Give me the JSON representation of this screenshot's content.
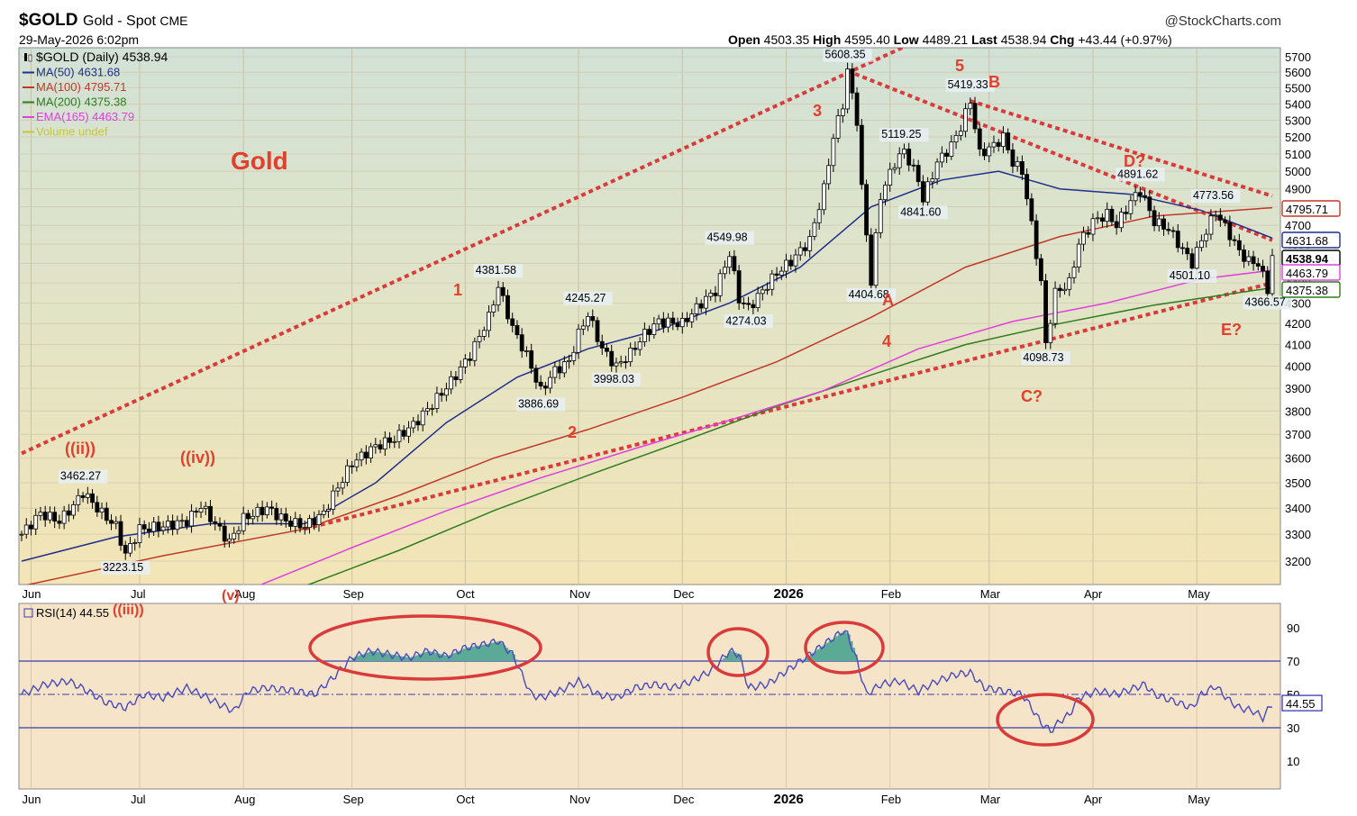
{
  "header": {
    "symbol": "$GOLD",
    "name": "Gold - Spot",
    "exchange": "CME",
    "date": "29-May-2026 6:02pm",
    "source": "@StockCharts.com",
    "ohlc": {
      "open_label": "Open",
      "open": "4503.35",
      "high_label": "High",
      "high": "4595.40",
      "low_label": "Low",
      "low": "4489.21",
      "last_label": "Last",
      "last": "4538.94",
      "chg_label": "Chg",
      "chg": "+43.44 (+0.97%)"
    }
  },
  "legend": [
    {
      "text": "$GOLD (Daily) 4538.94",
      "color": "#000000",
      "marker": "candle-icon"
    },
    {
      "text": "MA(50) 4631.68",
      "color": "#1f2f8c"
    },
    {
      "text": "MA(100) 4795.71",
      "color": "#c0392b"
    },
    {
      "text": "MA(200) 4375.38",
      "color": "#2e7d1e"
    },
    {
      "text": "EMA(165) 4463.79",
      "color": "#e040e0"
    },
    {
      "text": "Volume undef",
      "color": "#c8c830"
    }
  ],
  "chart_title": "Gold",
  "rsi_legend": "RSI(14) 44.55",
  "colors": {
    "price_bg_top": "#d2e2d6",
    "price_bg_bottom": "#f3e5b6",
    "rsi_bg": "#f5e4c8",
    "trend": "#d93a3a",
    "wave": "#e0402c",
    "ma50": "#1f2f8c",
    "ma100": "#c0392b",
    "ma200": "#2e7d1e",
    "ema165": "#e040e0",
    "rsi_line": "#4a4ac0",
    "rsi_fill": "#5aaa96"
  },
  "chart_data": [
    {
      "type": "candlestick",
      "title": "Gold",
      "x_labels": [
        "Jun",
        "Jul",
        "Aug",
        "Sep",
        "Oct",
        "Nov",
        "Dec",
        "2026",
        "Feb",
        "Mar",
        "Apr",
        "May"
      ],
      "y_ticks": [
        3200,
        3300,
        3400,
        3500,
        3600,
        3700,
        3800,
        3900,
        4000,
        4100,
        4200,
        4300,
        4400,
        4500,
        4600,
        4700,
        4800,
        4900,
        5000,
        5100,
        5200,
        5300,
        5400,
        5500,
        5600,
        5700
      ],
      "ylim": [
        3110,
        5760
      ],
      "scale": "log",
      "price_points": [
        {
          "t": 0,
          "v": 3300
        },
        {
          "t": 4,
          "v": 3380
        },
        {
          "t": 8,
          "v": 3350
        },
        {
          "t": 11,
          "v": 3410
        },
        {
          "t": 13,
          "v": 3462.27
        },
        {
          "t": 17,
          "v": 3380
        },
        {
          "t": 20,
          "v": 3330
        },
        {
          "t": 22,
          "v": 3223.15
        },
        {
          "t": 25,
          "v": 3320
        },
        {
          "t": 30,
          "v": 3330
        },
        {
          "t": 35,
          "v": 3350
        },
        {
          "t": 38,
          "v": 3410
        },
        {
          "t": 41,
          "v": 3340
        },
        {
          "t": 44,
          "v": 3270
        },
        {
          "t": 47,
          "v": 3360
        },
        {
          "t": 52,
          "v": 3400
        },
        {
          "t": 56,
          "v": 3350
        },
        {
          "t": 60,
          "v": 3330
        },
        {
          "t": 64,
          "v": 3380
        },
        {
          "t": 66,
          "v": 3450
        },
        {
          "t": 70,
          "v": 3580
        },
        {
          "t": 75,
          "v": 3650
        },
        {
          "t": 79,
          "v": 3680
        },
        {
          "t": 83,
          "v": 3740
        },
        {
          "t": 87,
          "v": 3830
        },
        {
          "t": 91,
          "v": 3930
        },
        {
          "t": 95,
          "v": 4050
        },
        {
          "t": 99,
          "v": 4230
        },
        {
          "t": 101,
          "v": 4381.58
        },
        {
          "t": 104,
          "v": 4180
        },
        {
          "t": 107,
          "v": 4050
        },
        {
          "t": 110,
          "v": 3886.69
        },
        {
          "t": 113,
          "v": 3980
        },
        {
          "t": 116,
          "v": 4020
        },
        {
          "t": 118,
          "v": 4150
        },
        {
          "t": 120,
          "v": 4245.27
        },
        {
          "t": 123,
          "v": 4080
        },
        {
          "t": 126,
          "v": 3998.03
        },
        {
          "t": 129,
          "v": 4060
        },
        {
          "t": 132,
          "v": 4150
        },
        {
          "t": 135,
          "v": 4210
        },
        {
          "t": 140,
          "v": 4200
        },
        {
          "t": 144,
          "v": 4300
        },
        {
          "t": 147,
          "v": 4360
        },
        {
          "t": 150,
          "v": 4549.98
        },
        {
          "t": 152,
          "v": 4320
        },
        {
          "t": 154,
          "v": 4274.03
        },
        {
          "t": 157,
          "v": 4360
        },
        {
          "t": 160,
          "v": 4450
        },
        {
          "t": 163,
          "v": 4510
        },
        {
          "t": 167,
          "v": 4620
        },
        {
          "t": 170,
          "v": 4900
        },
        {
          "t": 172,
          "v": 5200
        },
        {
          "t": 174,
          "v": 5400
        },
        {
          "t": 175,
          "v": 5608.35
        },
        {
          "t": 177,
          "v": 5300
        },
        {
          "t": 178,
          "v": 4900
        },
        {
          "t": 180,
          "v": 4404.68
        },
        {
          "t": 182,
          "v": 4860
        },
        {
          "t": 185,
          "v": 5050
        },
        {
          "t": 187,
          "v": 5119.25
        },
        {
          "t": 190,
          "v": 4950
        },
        {
          "t": 191,
          "v": 4841.6
        },
        {
          "t": 194,
          "v": 5050
        },
        {
          "t": 197,
          "v": 5150
        },
        {
          "t": 199,
          "v": 5260
        },
        {
          "t": 201,
          "v": 5419.33
        },
        {
          "t": 203,
          "v": 5100
        },
        {
          "t": 206,
          "v": 5150
        },
        {
          "t": 208,
          "v": 5200
        },
        {
          "t": 210,
          "v": 5050
        },
        {
          "t": 212,
          "v": 5000
        },
        {
          "t": 214,
          "v": 4700
        },
        {
          "t": 216,
          "v": 4400
        },
        {
          "t": 217,
          "v": 4098.73
        },
        {
          "t": 219,
          "v": 4350
        },
        {
          "t": 222,
          "v": 4400
        },
        {
          "t": 224,
          "v": 4600
        },
        {
          "t": 227,
          "v": 4720
        },
        {
          "t": 230,
          "v": 4760
        },
        {
          "t": 232,
          "v": 4700
        },
        {
          "t": 235,
          "v": 4830
        },
        {
          "t": 237,
          "v": 4891.62
        },
        {
          "t": 240,
          "v": 4720
        },
        {
          "t": 243,
          "v": 4680
        },
        {
          "t": 246,
          "v": 4570
        },
        {
          "t": 248,
          "v": 4501.1
        },
        {
          "t": 250,
          "v": 4620
        },
        {
          "t": 253,
          "v": 4773.56
        },
        {
          "t": 256,
          "v": 4650
        },
        {
          "t": 258,
          "v": 4560
        },
        {
          "t": 260,
          "v": 4510
        },
        {
          "t": 262,
          "v": 4500
        },
        {
          "t": 264,
          "v": 4366.57
        },
        {
          "t": 265,
          "v": 4538.94
        }
      ],
      "series": [
        {
          "name": "MA(50)",
          "last": 4631.68,
          "points": [
            [
              0,
              3200
            ],
            [
              20,
              3290
            ],
            [
              40,
              3340
            ],
            [
              60,
              3340
            ],
            [
              75,
              3500
            ],
            [
              90,
              3750
            ],
            [
              105,
              3950
            ],
            [
              120,
              4080
            ],
            [
              135,
              4170
            ],
            [
              150,
              4300
            ],
            [
              165,
              4480
            ],
            [
              180,
              4800
            ],
            [
              195,
              4950
            ],
            [
              207,
              5000
            ],
            [
              220,
              4900
            ],
            [
              235,
              4870
            ],
            [
              250,
              4780
            ],
            [
              265,
              4631.68
            ]
          ]
        },
        {
          "name": "MA(100)",
          "last": 4795.71,
          "points": [
            [
              0,
              3110
            ],
            [
              30,
              3220
            ],
            [
              60,
              3320
            ],
            [
              80,
              3450
            ],
            [
              100,
              3600
            ],
            [
              120,
              3720
            ],
            [
              140,
              3860
            ],
            [
              160,
              4020
            ],
            [
              180,
              4230
            ],
            [
              200,
              4480
            ],
            [
              220,
              4640
            ],
            [
              240,
              4750
            ],
            [
              265,
              4795.71
            ]
          ]
        },
        {
          "name": "MA(200)",
          "last": 4375.38,
          "points": [
            [
              60,
              3110
            ],
            [
              80,
              3240
            ],
            [
              100,
              3390
            ],
            [
              120,
              3530
            ],
            [
              140,
              3670
            ],
            [
              160,
              3820
            ],
            [
              180,
              3960
            ],
            [
              200,
              4100
            ],
            [
              220,
              4200
            ],
            [
              240,
              4290
            ],
            [
              265,
              4375.38
            ]
          ]
        },
        {
          "name": "EMA(165)",
          "last": 4463.79,
          "points": [
            [
              50,
              3110
            ],
            [
              70,
              3250
            ],
            [
              90,
              3390
            ],
            [
              110,
              3520
            ],
            [
              130,
              3640
            ],
            [
              150,
              3760
            ],
            [
              170,
              3890
            ],
            [
              190,
              4080
            ],
            [
              210,
              4210
            ],
            [
              230,
              4300
            ],
            [
              250,
              4420
            ],
            [
              265,
              4463.79
            ]
          ]
        }
      ],
      "price_labels": [
        "3462.27",
        "3223.15",
        "4381.58",
        "3886.69",
        "4245.27",
        "3998.03",
        "4549.98",
        "4274.03",
        "5608.35",
        "4404.68",
        "5119.25",
        "4841.60",
        "5419.33",
        "4098.73",
        "4891.62",
        "4501.10",
        "4773.56",
        "4366.57"
      ],
      "axis_flags": [
        {
          "text": "4795.71",
          "value": 4795.71,
          "color": "#c0392b"
        },
        {
          "text": "4631.68",
          "value": 4631.68,
          "color": "#1f2f8c"
        },
        {
          "text": "4538.94",
          "value": 4538.94,
          "color": "#000000"
        },
        {
          "text": "4463.79",
          "value": 4463.79,
          "color": "#e040e0"
        },
        {
          "text": "4375.38",
          "value": 4375.38,
          "color": "#2e7d1e"
        }
      ],
      "wave_labels": [
        "((ii))",
        "((iv))",
        "(v)",
        "((iii))",
        "1",
        "2",
        "3",
        "4",
        "5",
        "A",
        "B",
        "C?",
        "D?",
        "E?"
      ]
    },
    {
      "type": "line",
      "name": "RSI(14)",
      "last": 44.55,
      "y_ticks": [
        10,
        30,
        50,
        70,
        90
      ],
      "ylim": [
        0,
        100
      ],
      "overbought": 70,
      "oversold": 30,
      "x_labels": [
        "Jun",
        "Jul",
        "Aug",
        "Sep",
        "Oct",
        "Nov",
        "Dec",
        "2026",
        "Feb",
        "Mar",
        "Apr",
        "May"
      ],
      "points": [
        [
          0,
          50
        ],
        [
          5,
          56
        ],
        [
          10,
          58
        ],
        [
          14,
          52
        ],
        [
          18,
          45
        ],
        [
          22,
          42
        ],
        [
          26,
          50
        ],
        [
          30,
          48
        ],
        [
          35,
          54
        ],
        [
          38,
          50
        ],
        [
          42,
          44
        ],
        [
          45,
          40
        ],
        [
          48,
          52
        ],
        [
          52,
          54
        ],
        [
          58,
          52
        ],
        [
          62,
          50
        ],
        [
          66,
          60
        ],
        [
          70,
          72
        ],
        [
          74,
          76
        ],
        [
          78,
          74
        ],
        [
          82,
          72
        ],
        [
          86,
          76
        ],
        [
          90,
          73
        ],
        [
          94,
          78
        ],
        [
          98,
          80
        ],
        [
          101,
          82
        ],
        [
          104,
          74
        ],
        [
          106,
          62
        ],
        [
          108,
          50
        ],
        [
          110,
          48
        ],
        [
          114,
          52
        ],
        [
          118,
          58
        ],
        [
          122,
          50
        ],
        [
          126,
          48
        ],
        [
          130,
          54
        ],
        [
          134,
          56
        ],
        [
          138,
          54
        ],
        [
          142,
          58
        ],
        [
          146,
          64
        ],
        [
          150,
          76
        ],
        [
          152,
          74
        ],
        [
          154,
          54
        ],
        [
          158,
          56
        ],
        [
          162,
          64
        ],
        [
          166,
          72
        ],
        [
          170,
          80
        ],
        [
          174,
          88
        ],
        [
          175,
          86
        ],
        [
          177,
          70
        ],
        [
          179,
          50
        ],
        [
          182,
          56
        ],
        [
          186,
          58
        ],
        [
          190,
          52
        ],
        [
          194,
          58
        ],
        [
          198,
          62
        ],
        [
          201,
          63
        ],
        [
          204,
          54
        ],
        [
          208,
          52
        ],
        [
          212,
          50
        ],
        [
          214,
          42
        ],
        [
          216,
          33
        ],
        [
          218,
          28
        ],
        [
          220,
          34
        ],
        [
          222,
          38
        ],
        [
          224,
          48
        ],
        [
          228,
          52
        ],
        [
          232,
          50
        ],
        [
          236,
          54
        ],
        [
          238,
          56
        ],
        [
          240,
          50
        ],
        [
          244,
          46
        ],
        [
          248,
          42
        ],
        [
          250,
          50
        ],
        [
          253,
          55
        ],
        [
          256,
          46
        ],
        [
          258,
          42
        ],
        [
          261,
          40
        ],
        [
          263,
          36
        ],
        [
          265,
          44.55
        ]
      ]
    }
  ]
}
